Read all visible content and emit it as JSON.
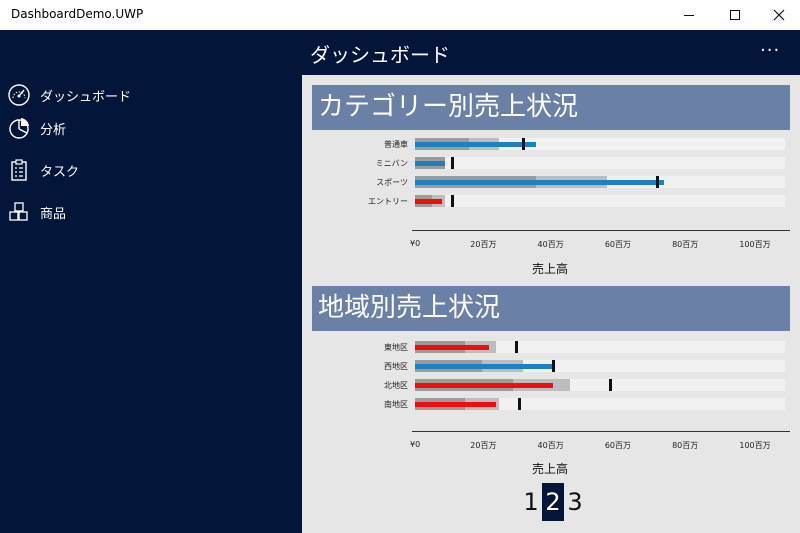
{
  "window": {
    "title": "DashboardDemo.UWP"
  },
  "appbar": {
    "title": "ダッシュボード",
    "more_label": "···"
  },
  "sidebar": {
    "items": [
      {
        "label": "ダッシュボード",
        "icon": "speedometer-icon"
      },
      {
        "label": "分析",
        "icon": "pie-chart-icon"
      },
      {
        "label": "タスク",
        "icon": "clipboard-icon"
      },
      {
        "label": "商品",
        "icon": "products-icon"
      }
    ]
  },
  "colors": {
    "accent": "#03163a",
    "header": "#6b80a6",
    "bar_blue": "#1e7fc1",
    "bar_red": "#f00d0d",
    "range_dark": "#9b9b9b",
    "range_light": "#bdbdbd",
    "track": "#f1f1f1"
  },
  "pager": {
    "pages": [
      "1",
      "2",
      "3"
    ],
    "current": "2"
  },
  "chart_data": [
    {
      "type": "bullet",
      "title": "カテゴリー別売上状況",
      "xlabel": "売上高",
      "xlim": [
        0,
        110
      ],
      "ticks": [
        "¥0",
        "20百万",
        "40百万",
        "60百万",
        "80百万",
        "100百万"
      ],
      "tick_values": [
        0,
        20,
        40,
        60,
        80,
        100
      ],
      "categories": [
        "普通車",
        "ミニバン",
        "スポーツ",
        "エントリー"
      ],
      "values": [
        36,
        9,
        74,
        8
      ],
      "targets": [
        32,
        11,
        72,
        11
      ],
      "range_dark": [
        16,
        9,
        36,
        5
      ],
      "range_light": [
        25,
        9,
        57,
        9
      ],
      "bar_colors": [
        "blue",
        "blue",
        "blue",
        "red"
      ]
    },
    {
      "type": "bullet",
      "title": "地域別売上状況",
      "xlabel": "売上高",
      "xlim": [
        0,
        110
      ],
      "ticks": [
        "¥0",
        "20百万",
        "40百万",
        "60百万",
        "80百万",
        "100百万"
      ],
      "tick_values": [
        0,
        20,
        40,
        60,
        80,
        100
      ],
      "categories": [
        "東地区",
        "西地区",
        "北地区",
        "南地区"
      ],
      "values": [
        22,
        41,
        41,
        24
      ],
      "targets": [
        30,
        41,
        58,
        31
      ],
      "range_dark": [
        15,
        20,
        29,
        15
      ],
      "range_light": [
        24,
        32,
        46,
        25
      ],
      "bar_colors": [
        "red",
        "blue",
        "red",
        "red"
      ]
    }
  ]
}
